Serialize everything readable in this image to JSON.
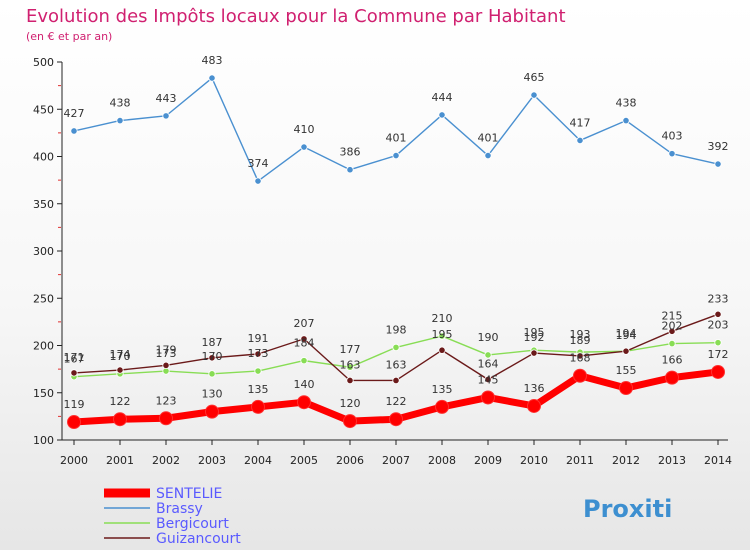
{
  "chart_data": {
    "type": "line",
    "title": "Evolution des Impôts locaux pour la Commune par Habitant",
    "subtitle": "(en € et par an)",
    "x": [
      2000,
      2001,
      2002,
      2003,
      2004,
      2005,
      2006,
      2007,
      2008,
      2009,
      2010,
      2011,
      2012,
      2013,
      2014
    ],
    "ylim": [
      100,
      500
    ],
    "yticks": [
      100,
      150,
      200,
      250,
      300,
      350,
      400,
      450,
      500
    ],
    "series": [
      {
        "name": "SENTELIE",
        "color": "#ff0000",
        "values": [
          119,
          122,
          123,
          130,
          135,
          140,
          120,
          122,
          135,
          145,
          136,
          168,
          155,
          166,
          172
        ]
      },
      {
        "name": "Brassy",
        "color": "#4a90d0",
        "values": [
          427,
          438,
          443,
          483,
          374,
          410,
          386,
          401,
          444,
          401,
          465,
          417,
          438,
          403,
          392
        ]
      },
      {
        "name": "Bergicourt",
        "color": "#88dd55",
        "values": [
          167,
          170,
          173,
          170,
          173,
          184,
          177,
          198,
          210,
          190,
          195,
          193,
          194,
          202,
          203
        ]
      },
      {
        "name": "Guizancourt",
        "color": "#6b1a1a",
        "values": [
          171,
          174,
          179,
          187,
          191,
          207,
          163,
          163,
          195,
          164,
          192,
          189,
          194,
          215,
          233
        ]
      }
    ],
    "legend": "bottom-left",
    "grid": false
  },
  "brand": {
    "logo_text": "Proxiti"
  }
}
